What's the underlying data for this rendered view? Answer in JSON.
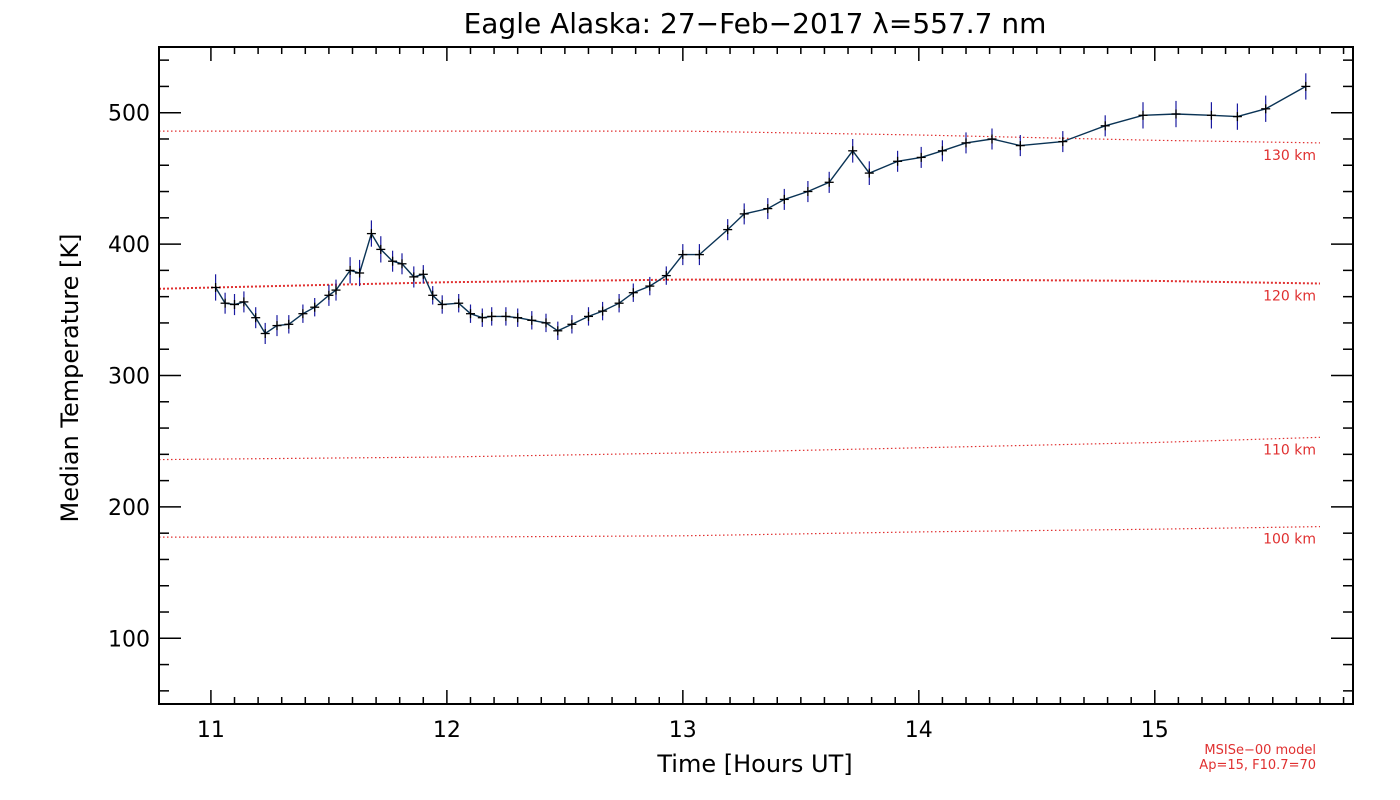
{
  "chart_data": {
    "type": "line",
    "title": "Eagle Alaska: 27−Feb−2017 λ=557.7 nm",
    "xlabel": "Time [Hours UT]",
    "ylabel": "Median Temperature [K]",
    "xlim": [
      10.78,
      15.84
    ],
    "ylim": [
      50,
      550
    ],
    "xticks": [
      11,
      12,
      13,
      14,
      15
    ],
    "yticks": [
      100,
      200,
      300,
      400,
      500
    ],
    "grid": false,
    "series": [
      {
        "color": "#0a3355",
        "marker": "plus",
        "error_bars": true,
        "points": [
          [
            11.02,
            367
          ],
          [
            11.06,
            355
          ],
          [
            11.1,
            354
          ],
          [
            11.14,
            356
          ],
          [
            11.19,
            344
          ],
          [
            11.23,
            332
          ],
          [
            11.28,
            338
          ],
          [
            11.33,
            339
          ],
          [
            11.39,
            347
          ],
          [
            11.44,
            352
          ],
          [
            11.5,
            361
          ],
          [
            11.53,
            365
          ],
          [
            11.59,
            380
          ],
          [
            11.63,
            378
          ],
          [
            11.68,
            408
          ],
          [
            11.72,
            396
          ],
          [
            11.77,
            387
          ],
          [
            11.81,
            385
          ],
          [
            11.86,
            375
          ],
          [
            11.9,
            377
          ],
          [
            11.94,
            361
          ],
          [
            11.98,
            354
          ],
          [
            12.05,
            355
          ],
          [
            12.1,
            347
          ],
          [
            12.15,
            344
          ],
          [
            12.19,
            345
          ],
          [
            12.25,
            345
          ],
          [
            12.3,
            344
          ],
          [
            12.36,
            342
          ],
          [
            12.42,
            340
          ],
          [
            12.47,
            334
          ],
          [
            12.53,
            339
          ],
          [
            12.6,
            345
          ],
          [
            12.66,
            349
          ],
          [
            12.73,
            355
          ],
          [
            12.79,
            363
          ],
          [
            12.86,
            368
          ],
          [
            12.93,
            376
          ],
          [
            13.0,
            392
          ],
          [
            13.07,
            392
          ],
          [
            13.19,
            411
          ],
          [
            13.26,
            423
          ],
          [
            13.36,
            427
          ],
          [
            13.43,
            434
          ],
          [
            13.53,
            440
          ],
          [
            13.62,
            447
          ],
          [
            13.72,
            471
          ],
          [
            13.79,
            454
          ],
          [
            13.91,
            463
          ],
          [
            14.01,
            466
          ],
          [
            14.1,
            471
          ],
          [
            14.2,
            477
          ],
          [
            14.31,
            480
          ],
          [
            14.43,
            475
          ],
          [
            14.61,
            478
          ],
          [
            14.79,
            490
          ],
          [
            14.95,
            498
          ],
          [
            15.09,
            499
          ],
          [
            15.24,
            498
          ],
          [
            15.35,
            497
          ],
          [
            15.47,
            503
          ],
          [
            15.64,
            520
          ]
        ],
        "errors": [
          10,
          8,
          8,
          8,
          8,
          8,
          8,
          7,
          7,
          7,
          8,
          8,
          10,
          10,
          10,
          10,
          8,
          8,
          8,
          7,
          7,
          7,
          7,
          7,
          7,
          7,
          7,
          7,
          7,
          7,
          7,
          7,
          7,
          7,
          7,
          7,
          7,
          7,
          8,
          8,
          8,
          8,
          8,
          8,
          8,
          8,
          9,
          9,
          8,
          8,
          8,
          8,
          8,
          8,
          8,
          8,
          10,
          10,
          10,
          10,
          10,
          10
        ]
      }
    ],
    "reference_curves": [
      {
        "label": "130 km",
        "color": "#e03030",
        "points": [
          [
            10.78,
            486
          ],
          [
            12.0,
            486
          ],
          [
            13.0,
            486
          ],
          [
            14.0,
            483
          ],
          [
            15.0,
            479
          ],
          [
            15.7,
            477
          ]
        ]
      },
      {
        "label": "120 km",
        "color": "#e03030",
        "points": [
          [
            10.78,
            366
          ],
          [
            11.5,
            369
          ],
          [
            12.0,
            371
          ],
          [
            13.0,
            373
          ],
          [
            14.0,
            373
          ],
          [
            15.0,
            372
          ],
          [
            15.7,
            370
          ]
        ]
      },
      {
        "label": "110 km",
        "color": "#e03030",
        "points": [
          [
            10.78,
            236
          ],
          [
            12.0,
            238
          ],
          [
            13.0,
            241
          ],
          [
            14.0,
            245
          ],
          [
            15.0,
            249
          ],
          [
            15.7,
            253
          ]
        ]
      },
      {
        "label": "100 km",
        "color": "#e03030",
        "points": [
          [
            10.78,
            177
          ],
          [
            12.0,
            177
          ],
          [
            13.0,
            178
          ],
          [
            14.0,
            181
          ],
          [
            15.0,
            183
          ],
          [
            15.7,
            185
          ]
        ]
      }
    ],
    "model_note": [
      "MSISe−00 model",
      "Ap=15, F10.7=70"
    ]
  }
}
